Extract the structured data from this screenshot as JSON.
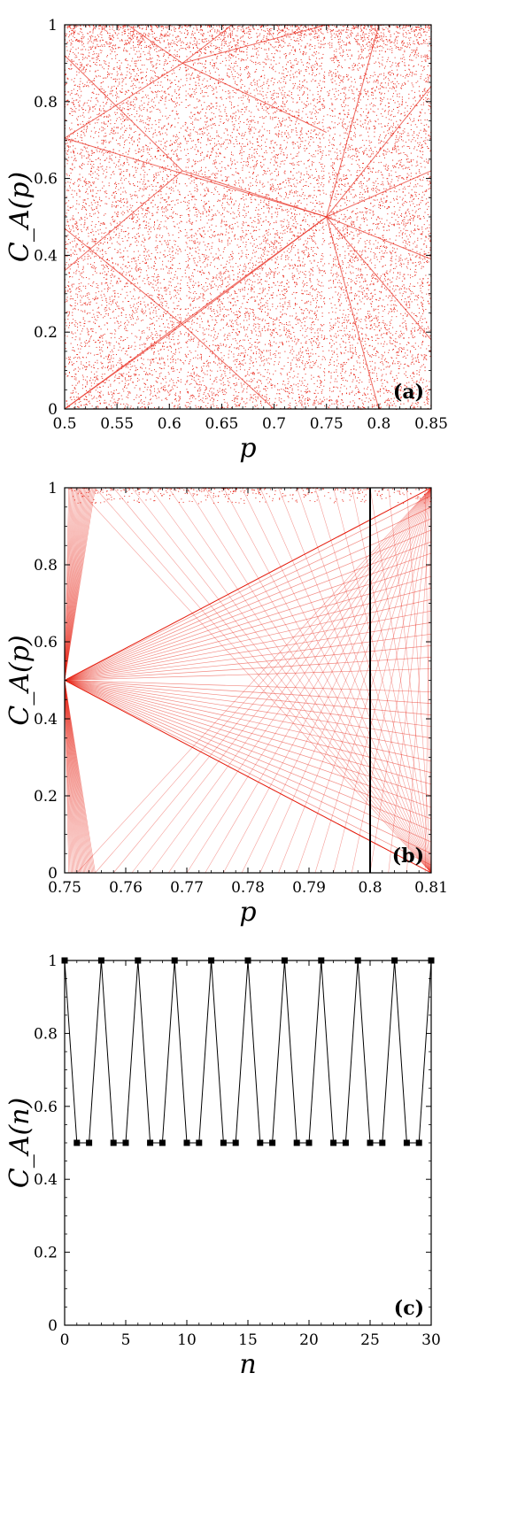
{
  "chart_data": [
    {
      "type": "scatter",
      "panel_label": "(a)",
      "xlabel": "p",
      "ylabel": "C_A(p)",
      "xlim": [
        0.5,
        0.85
      ],
      "ylim": [
        0,
        1
      ],
      "xticks": [
        "0.5",
        "0.55",
        "0.6",
        "0.65",
        "0.7",
        "0.75",
        "0.8",
        "0.85"
      ],
      "yticks": [
        "0",
        "0.2",
        "0.4",
        "0.6",
        "0.8",
        "1"
      ],
      "point_color": "#e8291c",
      "description_of_marks": "dense red scatter forming X-shaped line families",
      "special_points": [
        {
          "p": 0.75,
          "C": 0.5
        },
        {
          "p": 0.6125,
          "C": 0.62
        },
        {
          "p": 0.6125,
          "C": 0.9
        },
        {
          "p": 0.6125,
          "C": 0.22
        }
      ],
      "gaps_at_p": [
        0.6125,
        0.75
      ]
    },
    {
      "type": "scatter",
      "panel_label": "(b)",
      "xlabel": "p",
      "ylabel": "C_A(p)",
      "xlim": [
        0.75,
        0.81
      ],
      "ylim": [
        0,
        1
      ],
      "xticks": [
        "0.75",
        "0.76",
        "0.77",
        "0.78",
        "0.79",
        "0.8",
        "0.81"
      ],
      "yticks": [
        "0",
        "0.2",
        "0.4",
        "0.6",
        "0.8",
        "1"
      ],
      "point_color": "#e8291c",
      "marker_line_x": 0.8,
      "marker_line_color": "#000000",
      "fan_origin": {
        "p": 0.75,
        "C": 0.5
      }
    },
    {
      "type": "line",
      "panel_label": "(c)",
      "xlabel": "n",
      "ylabel": "C_A(n)",
      "xlim": [
        0,
        30
      ],
      "ylim": [
        0,
        1
      ],
      "xticks": [
        "0",
        "5",
        "10",
        "15",
        "20",
        "25",
        "30"
      ],
      "yticks": [
        "0",
        "0.2",
        "0.4",
        "0.6",
        "0.8",
        "1"
      ],
      "line_color": "#000000",
      "x": [
        0,
        1,
        2,
        3,
        4,
        5,
        6,
        7,
        8,
        9,
        10,
        11,
        12,
        13,
        14,
        15,
        16,
        17,
        18,
        19,
        20,
        21,
        22,
        23,
        24,
        25,
        26,
        27,
        28,
        29,
        30
      ],
      "y": [
        1,
        0.5,
        0.5,
        1,
        0.5,
        0.5,
        1,
        0.5,
        0.5,
        1,
        0.5,
        0.5,
        1,
        0.5,
        0.5,
        1,
        0.5,
        0.5,
        1,
        0.5,
        0.5,
        1,
        0.5,
        0.5,
        1,
        0.5,
        0.5,
        1,
        0.5,
        0.5,
        1
      ]
    }
  ]
}
